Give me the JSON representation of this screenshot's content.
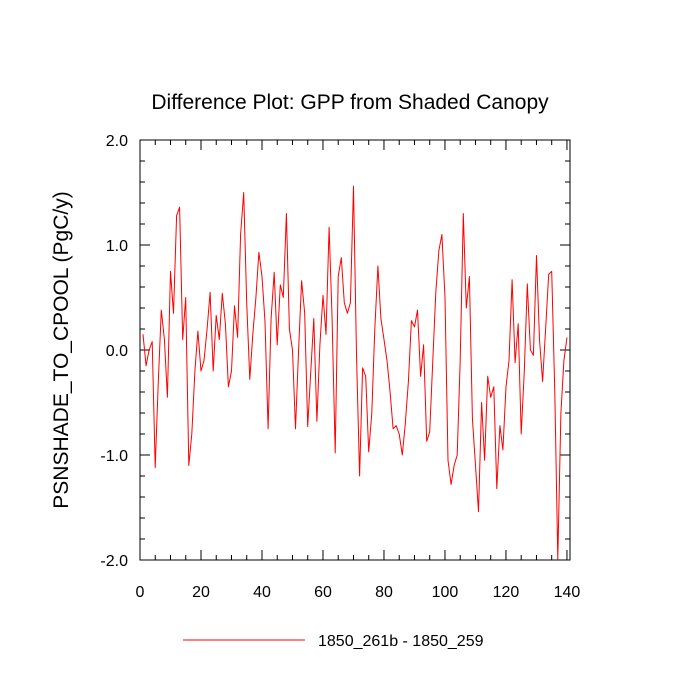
{
  "chart_data": {
    "type": "line",
    "title": "Difference Plot: GPP from Shaded Canopy",
    "xlabel": "",
    "ylabel": "PSNSHADE_TO_CPOOL  (PgC/y)",
    "xlim": [
      0,
      141
    ],
    "ylim": [
      -2.0,
      2.0
    ],
    "x_ticks": [
      0,
      20,
      40,
      60,
      80,
      100,
      120,
      140
    ],
    "x_tick_labels": [
      "0",
      "20",
      "40",
      "60",
      "80",
      "100",
      "120",
      "140"
    ],
    "y_ticks": [
      -2.0,
      -1.0,
      0.0,
      1.0,
      2.0
    ],
    "y_tick_labels": [
      "-2.0",
      "-1.0",
      "0.0",
      "1.0",
      "2.0"
    ],
    "grid": false,
    "legend_position": "bottom",
    "series": [
      {
        "name": "1850_261b - 1850_259",
        "color": "#ff0000",
        "x": [
          1,
          2,
          3,
          4,
          5,
          6,
          7,
          8,
          9,
          10,
          11,
          12,
          13,
          14,
          15,
          16,
          17,
          18,
          19,
          20,
          21,
          22,
          23,
          24,
          25,
          26,
          27,
          28,
          29,
          30,
          31,
          32,
          33,
          34,
          35,
          36,
          37,
          38,
          39,
          40,
          41,
          42,
          43,
          44,
          45,
          46,
          47,
          48,
          49,
          50,
          51,
          52,
          53,
          54,
          55,
          56,
          57,
          58,
          59,
          60,
          61,
          62,
          63,
          64,
          65,
          66,
          67,
          68,
          69,
          70,
          71,
          72,
          73,
          74,
          75,
          76,
          77,
          78,
          79,
          80,
          81,
          82,
          83,
          84,
          85,
          86,
          87,
          88,
          89,
          90,
          91,
          92,
          93,
          94,
          95,
          96,
          97,
          98,
          99,
          100,
          101,
          102,
          103,
          104,
          105,
          106,
          107,
          108,
          109,
          110,
          111,
          112,
          113,
          114,
          115,
          116,
          117,
          118,
          119,
          120,
          121,
          122,
          123,
          124,
          125,
          126,
          127,
          128,
          129,
          130,
          131,
          132,
          133,
          134,
          135,
          136,
          137,
          138,
          139,
          140
        ],
        "y": [
          0.15,
          -0.15,
          0.0,
          0.08,
          -1.12,
          -0.3,
          0.38,
          0.1,
          -0.45,
          0.75,
          0.35,
          1.28,
          1.36,
          0.1,
          0.5,
          -1.1,
          -0.8,
          -0.2,
          0.18,
          -0.2,
          -0.1,
          0.2,
          0.55,
          -0.2,
          0.33,
          0.1,
          0.54,
          0.25,
          -0.35,
          -0.2,
          0.42,
          0.12,
          1.1,
          1.5,
          0.45,
          -0.28,
          0.15,
          0.5,
          0.93,
          0.7,
          0.27,
          -0.75,
          0.3,
          0.74,
          0.05,
          0.62,
          0.5,
          1.3,
          0.2,
          0.0,
          -0.75,
          0.0,
          0.66,
          0.35,
          -0.73,
          -0.2,
          0.3,
          -0.68,
          0.05,
          0.52,
          0.15,
          1.17,
          0.3,
          -0.98,
          0.7,
          0.88,
          0.45,
          0.35,
          0.45,
          1.56,
          -0.05,
          -1.2,
          -0.17,
          -0.25,
          -0.97,
          -0.6,
          0.2,
          0.8,
          0.3,
          0.1,
          -0.1,
          -0.4,
          -0.75,
          -0.72,
          -0.8,
          -1.0,
          -0.7,
          -0.3,
          0.28,
          0.22,
          0.38,
          -0.25,
          0.05,
          -0.87,
          -0.78,
          -0.1,
          0.55,
          0.95,
          1.1,
          0.5,
          -1.05,
          -1.28,
          -1.1,
          -1.0,
          -0.1,
          1.3,
          0.4,
          0.7,
          -0.65,
          -1.1,
          -1.54,
          -0.5,
          -1.05,
          -0.25,
          -0.45,
          -0.35,
          -1.32,
          -0.72,
          -0.95,
          -0.35,
          -0.1,
          0.67,
          -0.12,
          0.25,
          -0.8,
          -0.2,
          0.63,
          0.0,
          -0.05,
          0.9,
          0.1,
          -0.3,
          0.2,
          0.72,
          0.75,
          -0.4,
          -1.99,
          -0.6,
          -0.1,
          0.12
        ]
      }
    ]
  }
}
